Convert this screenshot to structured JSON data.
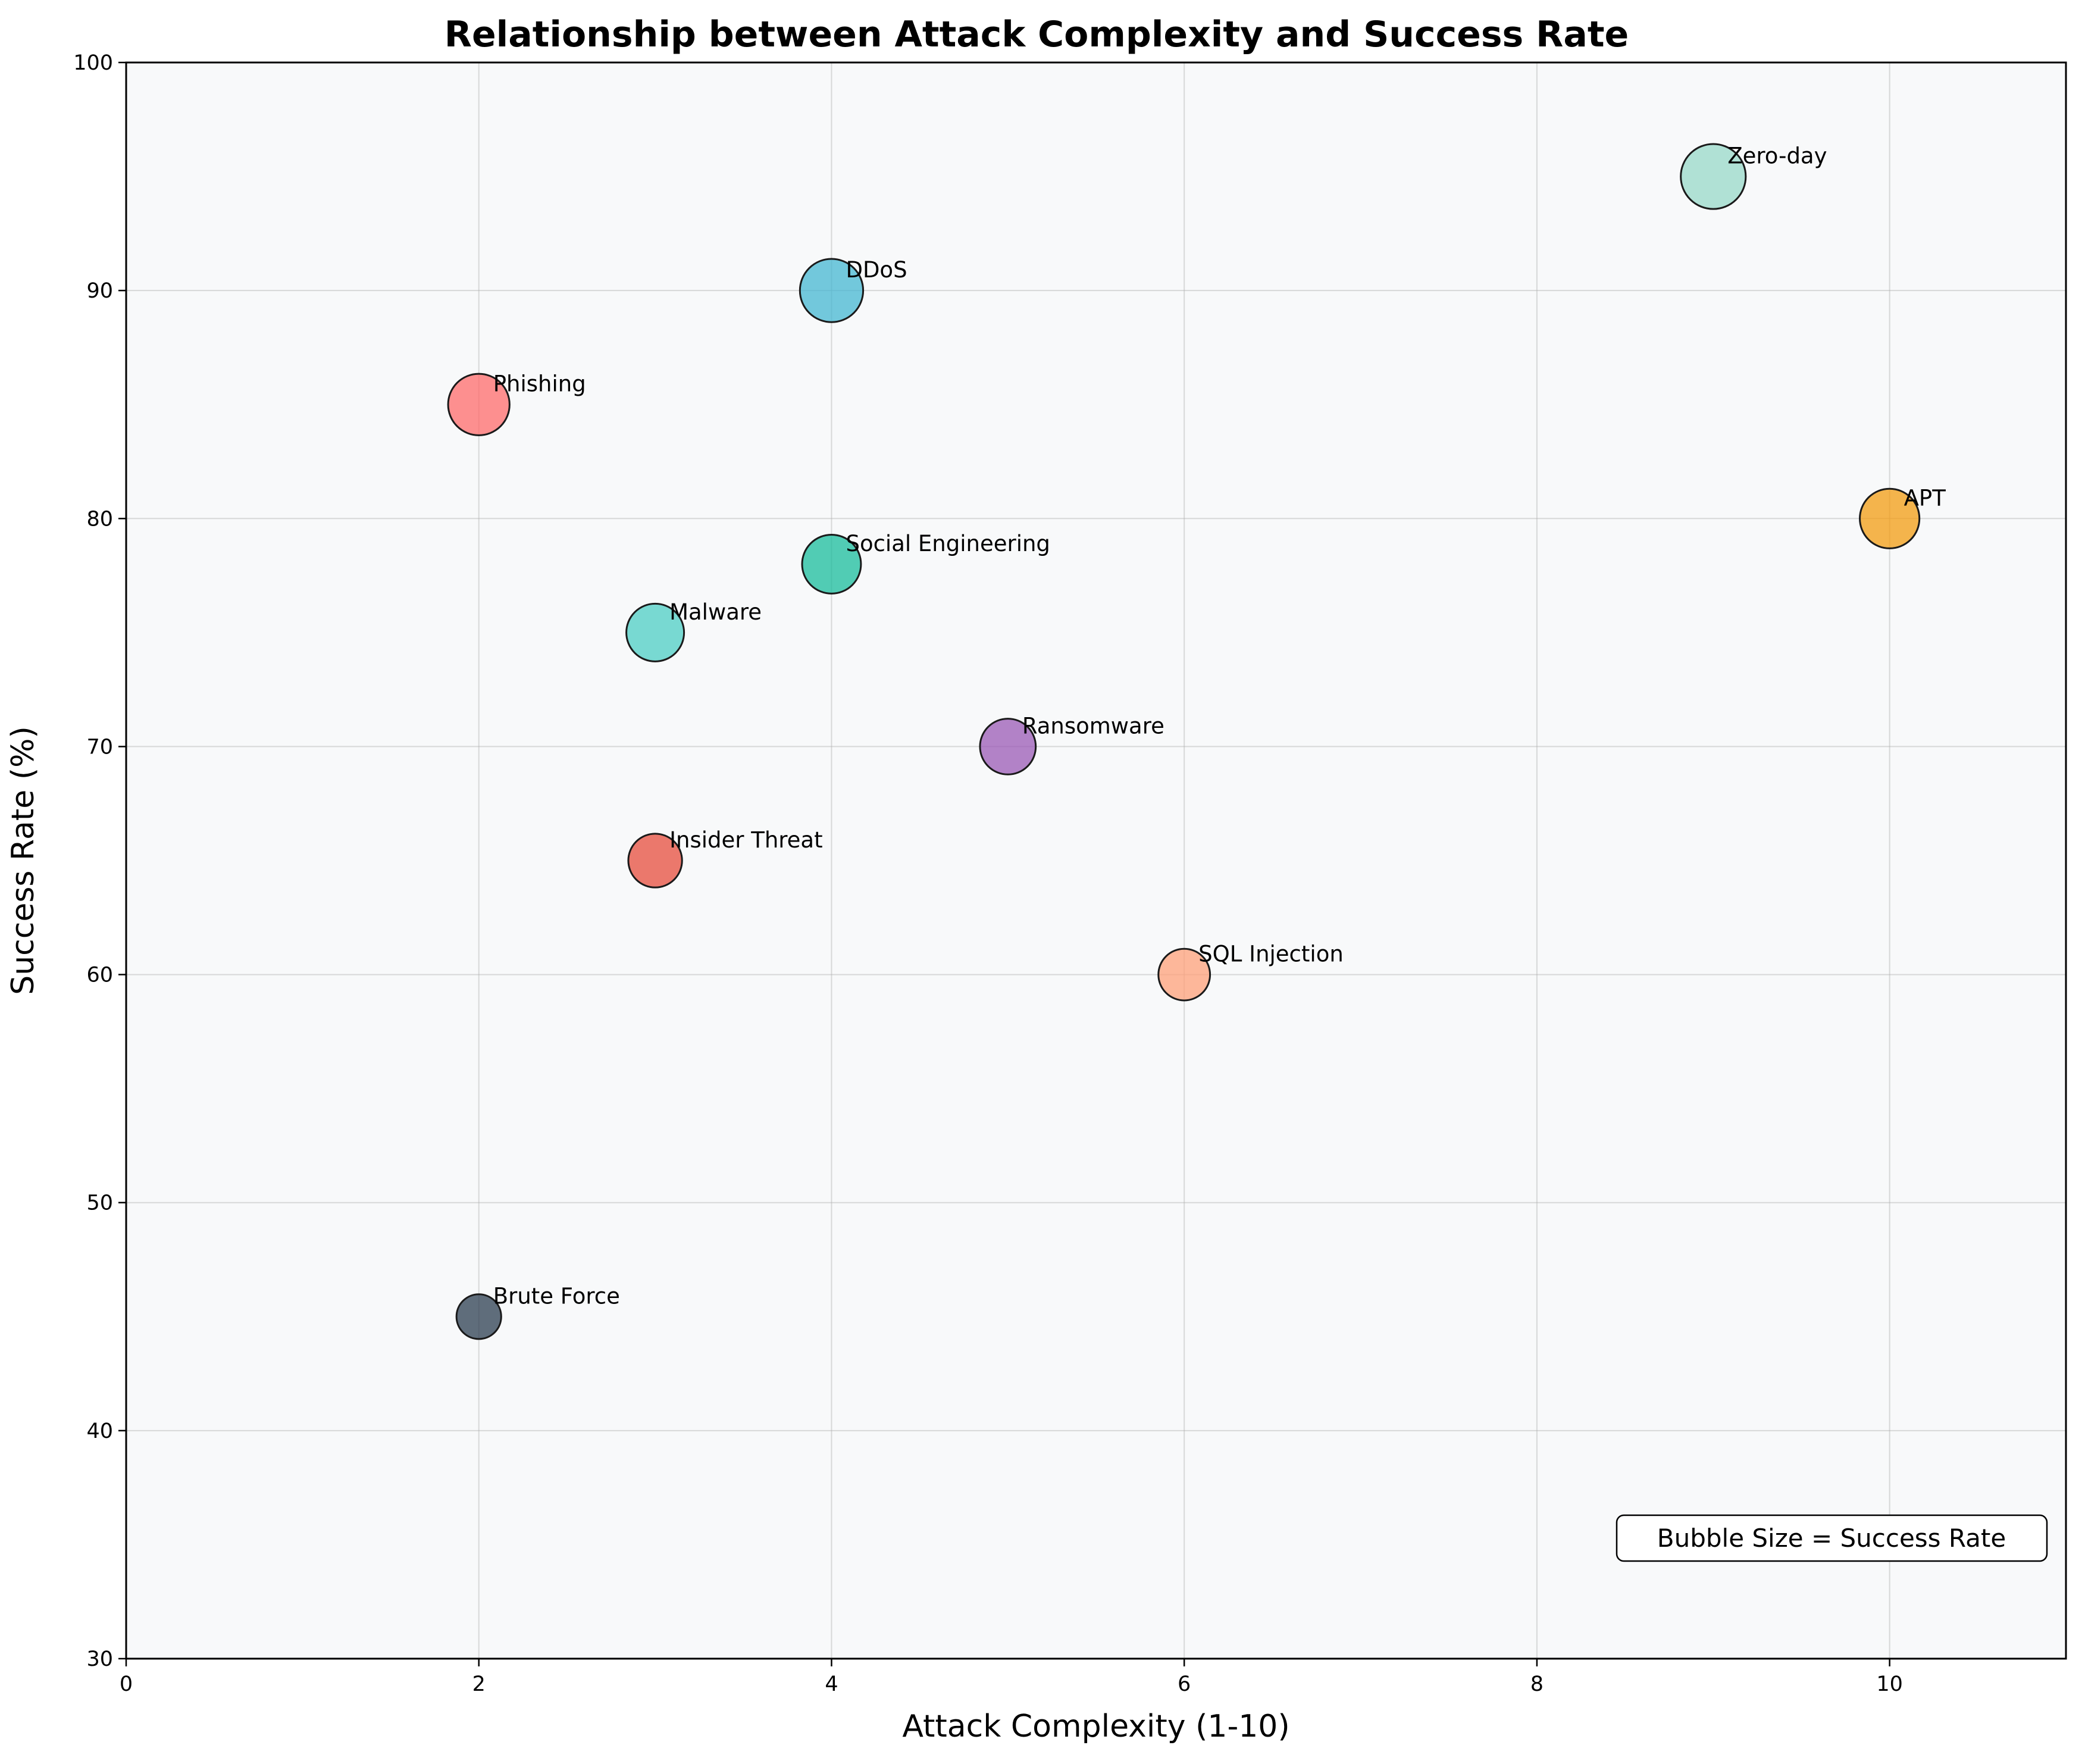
{
  "chart_data": {
    "type": "scatter",
    "title": "Relationship between Attack Complexity and Success Rate",
    "xlabel": "Attack Complexity (1-10)",
    "ylabel": "Success Rate (%)",
    "xlim": [
      0,
      11
    ],
    "ylim": [
      30,
      100
    ],
    "xticks": [
      0,
      2,
      4,
      6,
      8,
      10
    ],
    "yticks": [
      30,
      40,
      50,
      60,
      70,
      80,
      90,
      100
    ],
    "grid": true,
    "annotation": "Bubble Size = Success Rate",
    "annotation_placement": "bottom-right",
    "size_encoding": "success_rate",
    "points": [
      {
        "label": "Phishing",
        "x": 2,
        "y": 85,
        "color": "#FF6B6B"
      },
      {
        "label": "Malware",
        "x": 3,
        "y": 75,
        "color": "#4ECDC4"
      },
      {
        "label": "DDoS",
        "x": 4,
        "y": 90,
        "color": "#45B7D1"
      },
      {
        "label": "SQL Injection",
        "x": 6,
        "y": 60,
        "color": "#FFA07A"
      },
      {
        "label": "Zero-day",
        "x": 9,
        "y": 95,
        "color": "#98D8C8"
      },
      {
        "label": "Social Engineering",
        "x": 4,
        "y": 78,
        "color": "#1ABC9C"
      },
      {
        "label": "Brute Force",
        "x": 2,
        "y": 45,
        "color": "#2C3E50"
      },
      {
        "label": "Ransomware",
        "x": 5,
        "y": 70,
        "color": "#9B59B6"
      },
      {
        "label": "APT",
        "x": 10,
        "y": 80,
        "color": "#F39C12"
      },
      {
        "label": "Insider Threat",
        "x": 3,
        "y": 65,
        "color": "#E74C3C"
      }
    ]
  }
}
